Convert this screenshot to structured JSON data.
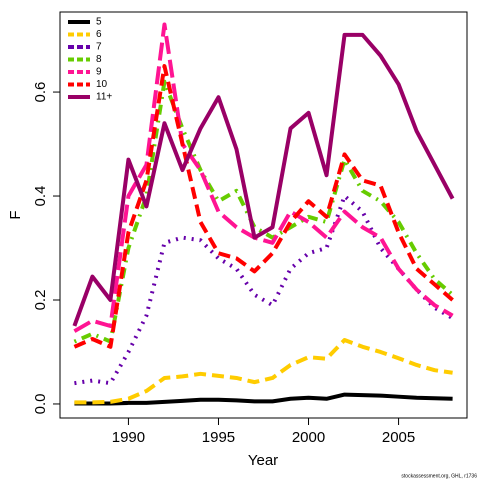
{
  "chart_data": {
    "type": "line",
    "x_label": "Year",
    "y_label": "F",
    "caption": "stockassessment.org, GHL, r1736",
    "x": [
      1987,
      1988,
      1989,
      1990,
      1991,
      1992,
      1993,
      1994,
      1995,
      1996,
      1997,
      1998,
      1999,
      2000,
      2001,
      2002,
      2003,
      2004,
      2005,
      2006,
      2007,
      2008
    ],
    "series": [
      {
        "name": "5",
        "color": "#000000",
        "style": "solid",
        "values": [
          0.001,
          0.001,
          0.001,
          0.002,
          0.002,
          0.004,
          0.006,
          0.008,
          0.008,
          0.007,
          0.005,
          0.005,
          0.01,
          0.012,
          0.01,
          0.018,
          0.017,
          0.016,
          0.014,
          0.012,
          0.011,
          0.01
        ]
      },
      {
        "name": "6",
        "color": "#ffcc00",
        "style": "dashed",
        "values": [
          0.003,
          0.003,
          0.004,
          0.01,
          0.025,
          0.05,
          0.053,
          0.058,
          0.054,
          0.05,
          0.042,
          0.05,
          0.075,
          0.09,
          0.087,
          0.123,
          0.11,
          0.1,
          0.088,
          0.075,
          0.065,
          0.06
        ]
      },
      {
        "name": "7",
        "color": "#6600aa",
        "style": "dotted",
        "values": [
          0.04,
          0.045,
          0.04,
          0.1,
          0.17,
          0.31,
          0.32,
          0.315,
          0.28,
          0.26,
          0.21,
          0.19,
          0.26,
          0.29,
          0.3,
          0.4,
          0.37,
          0.3,
          0.26,
          0.22,
          0.185,
          0.165
        ]
      },
      {
        "name": "8",
        "color": "#66cc00",
        "style": "dotdash",
        "values": [
          0.12,
          0.135,
          0.12,
          0.3,
          0.4,
          0.62,
          0.53,
          0.45,
          0.39,
          0.41,
          0.34,
          0.32,
          0.34,
          0.36,
          0.35,
          0.47,
          0.41,
          0.39,
          0.35,
          0.29,
          0.24,
          0.21
        ]
      },
      {
        "name": "9",
        "color": "#ff1493",
        "style": "longdash",
        "values": [
          0.14,
          0.16,
          0.15,
          0.4,
          0.46,
          0.73,
          0.5,
          0.45,
          0.37,
          0.34,
          0.32,
          0.31,
          0.37,
          0.35,
          0.32,
          0.37,
          0.34,
          0.32,
          0.26,
          0.22,
          0.19,
          0.17
        ]
      },
      {
        "name": "10",
        "color": "#ff0000",
        "style": "dashed",
        "values": [
          0.11,
          0.125,
          0.11,
          0.33,
          0.43,
          0.65,
          0.5,
          0.35,
          0.29,
          0.28,
          0.255,
          0.29,
          0.35,
          0.39,
          0.36,
          0.48,
          0.43,
          0.42,
          0.33,
          0.26,
          0.23,
          0.2
        ]
      },
      {
        "name": "11+",
        "color": "#990066",
        "style": "solid",
        "values": [
          0.15,
          0.245,
          0.2,
          0.47,
          0.38,
          0.54,
          0.45,
          0.53,
          0.59,
          0.49,
          0.32,
          0.34,
          0.53,
          0.56,
          0.44,
          0.71,
          0.71,
          0.67,
          0.615,
          0.525,
          0.46,
          0.395
        ]
      }
    ],
    "xlim": [
      1986.2,
      2008.8
    ],
    "xticks": [
      1990,
      1995,
      2000,
      2005
    ],
    "ylim": [
      -0.027,
      0.754
    ],
    "yticks": [
      {
        "value": 0,
        "label": "0.0"
      },
      0.2,
      0.4,
      0.6
    ],
    "legend": "top-left"
  }
}
